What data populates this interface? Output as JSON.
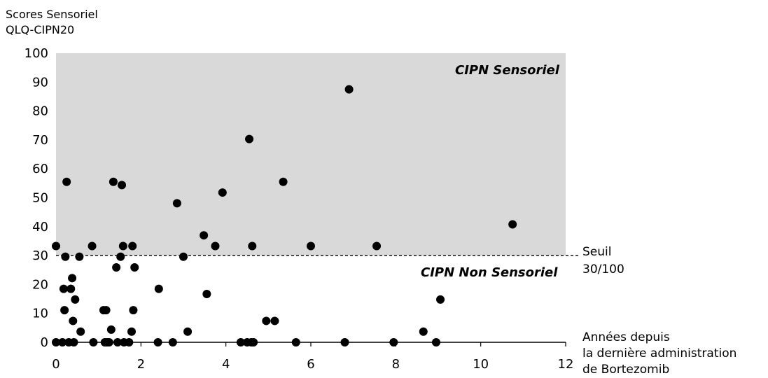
{
  "chart_data": {
    "type": "scatter",
    "ylabel_lines": [
      "Scores Sensoriel",
      "QLQ-CIPN20"
    ],
    "xlabel_lines": [
      "Années depuis",
      "la dernière administration",
      "de Bortezomib"
    ],
    "xlim": [
      0,
      12
    ],
    "ylim": [
      0,
      100
    ],
    "xticks": [
      0,
      2,
      4,
      6,
      8,
      10,
      12
    ],
    "yticks": [
      0,
      10,
      20,
      30,
      40,
      50,
      60,
      70,
      80,
      90,
      100
    ],
    "threshold": {
      "value": 30,
      "label_lines": [
        "Seuil",
        "30/100"
      ]
    },
    "regions": {
      "upper": "CIPN Sensoriel",
      "lower": "CIPN Non Sensoriel"
    },
    "colors": {
      "upper_region": "#d9d9d9",
      "points": "#000000"
    },
    "points": [
      [
        0.0,
        33.3
      ],
      [
        0.0,
        0
      ],
      [
        0.15,
        0
      ],
      [
        0.18,
        18.5
      ],
      [
        0.2,
        11.1
      ],
      [
        0.22,
        29.6
      ],
      [
        0.25,
        55.5
      ],
      [
        0.3,
        0
      ],
      [
        0.35,
        18.5
      ],
      [
        0.38,
        22.2
      ],
      [
        0.4,
        7.4
      ],
      [
        0.42,
        0
      ],
      [
        0.45,
        14.8
      ],
      [
        0.55,
        29.6
      ],
      [
        0.58,
        3.7
      ],
      [
        0.85,
        33.3
      ],
      [
        0.88,
        0
      ],
      [
        1.12,
        11.1
      ],
      [
        1.15,
        0
      ],
      [
        1.18,
        11.1
      ],
      [
        1.2,
        0
      ],
      [
        1.25,
        0
      ],
      [
        1.3,
        4.4
      ],
      [
        1.35,
        55.5
      ],
      [
        1.42,
        25.9
      ],
      [
        1.45,
        0
      ],
      [
        1.52,
        29.6
      ],
      [
        1.55,
        54.4
      ],
      [
        1.58,
        33.3
      ],
      [
        1.6,
        0
      ],
      [
        1.72,
        0
      ],
      [
        1.78,
        3.7
      ],
      [
        1.8,
        33.3
      ],
      [
        1.82,
        11.1
      ],
      [
        1.85,
        25.9
      ],
      [
        2.4,
        0
      ],
      [
        2.42,
        18.5
      ],
      [
        2.75,
        0
      ],
      [
        2.85,
        48.1
      ],
      [
        3.0,
        29.6
      ],
      [
        3.1,
        3.7
      ],
      [
        3.48,
        37.0
      ],
      [
        3.55,
        16.7
      ],
      [
        3.75,
        33.3
      ],
      [
        3.92,
        51.8
      ],
      [
        4.35,
        0
      ],
      [
        4.5,
        0
      ],
      [
        4.55,
        70.3
      ],
      [
        4.6,
        0
      ],
      [
        4.62,
        33.3
      ],
      [
        4.65,
        0
      ],
      [
        4.95,
        7.4
      ],
      [
        5.15,
        7.4
      ],
      [
        5.35,
        55.5
      ],
      [
        5.65,
        0
      ],
      [
        6.0,
        33.3
      ],
      [
        6.8,
        0
      ],
      [
        6.9,
        87.5
      ],
      [
        7.55,
        33.3
      ],
      [
        7.95,
        0
      ],
      [
        8.65,
        3.7
      ],
      [
        8.95,
        0
      ],
      [
        9.05,
        14.8
      ],
      [
        10.75,
        40.8
      ]
    ]
  }
}
